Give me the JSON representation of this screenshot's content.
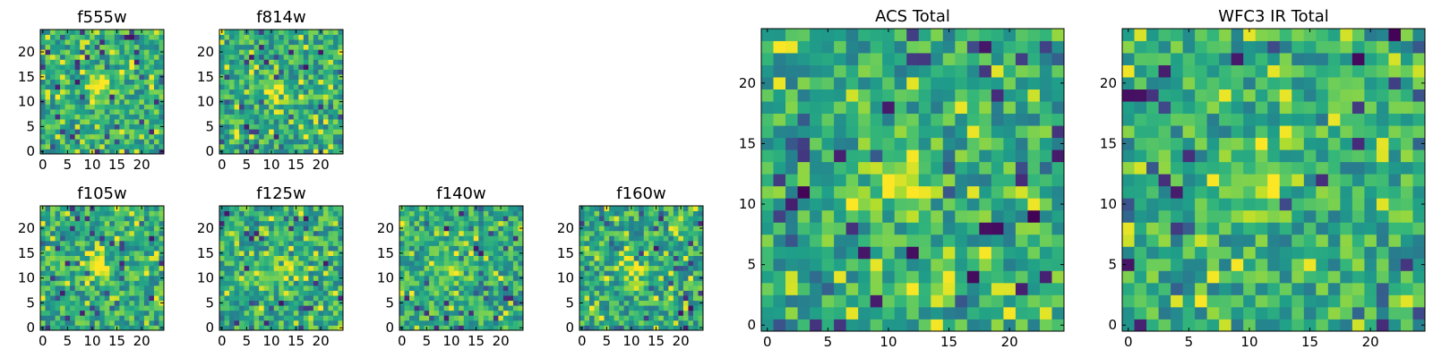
{
  "figure": {
    "colormap": "viridis",
    "background": "#ffffff",
    "frame_color": "#000000"
  },
  "chart_data": [
    {
      "type": "heatmap",
      "title": "f555w",
      "grid": [
        25,
        25
      ],
      "xticks": [
        "0",
        "5",
        "10",
        "15",
        "20"
      ],
      "yticks": [
        "0",
        "5",
        "10",
        "15",
        "20"
      ],
      "xlim": [
        0,
        25
      ],
      "ylim": [
        0,
        25
      ],
      "seed": 11,
      "blob": [
        11,
        13
      ],
      "spots": []
    },
    {
      "type": "heatmap",
      "title": "f814w",
      "grid": [
        25,
        25
      ],
      "xticks": [
        "0",
        "5",
        "10",
        "15",
        "20"
      ],
      "yticks": [
        "0",
        "5",
        "10",
        "15",
        "20"
      ],
      "xlim": [
        0,
        25
      ],
      "ylim": [
        0,
        25
      ],
      "seed": 23,
      "blob": [
        11,
        12
      ],
      "spots": []
    },
    {
      "type": "heatmap",
      "title": "f105w",
      "grid": [
        25,
        25
      ],
      "xticks": [
        "0",
        "5",
        "10",
        "15",
        "20"
      ],
      "yticks": [
        "0",
        "5",
        "10",
        "15",
        "20"
      ],
      "xlim": [
        0,
        25
      ],
      "ylim": [
        0,
        25
      ],
      "seed": 37,
      "blob": [
        11,
        12
      ],
      "spots": []
    },
    {
      "type": "heatmap",
      "title": "f125w",
      "grid": [
        25,
        25
      ],
      "xticks": [
        "0",
        "5",
        "10",
        "15",
        "20"
      ],
      "yticks": [
        "0",
        "5",
        "10",
        "15",
        "20"
      ],
      "xlim": [
        0,
        25
      ],
      "ylim": [
        0,
        25
      ],
      "seed": 41,
      "blob": [
        12,
        12
      ],
      "spots": []
    },
    {
      "type": "heatmap",
      "title": "f140w",
      "grid": [
        25,
        25
      ],
      "xticks": [
        "0",
        "5",
        "10",
        "15",
        "20"
      ],
      "yticks": [
        "0",
        "5",
        "10",
        "15",
        "20"
      ],
      "xlim": [
        0,
        25
      ],
      "ylim": [
        0,
        25
      ],
      "seed": 53,
      "blob": [
        11,
        12
      ],
      "spots": []
    },
    {
      "type": "heatmap",
      "title": "f160w",
      "grid": [
        25,
        25
      ],
      "xticks": [
        "0",
        "5",
        "10",
        "15",
        "20"
      ],
      "yticks": [
        "0",
        "5",
        "10",
        "15",
        "20"
      ],
      "xlim": [
        0,
        25
      ],
      "ylim": [
        0,
        25
      ],
      "seed": 67,
      "blob": [
        11,
        12
      ],
      "spots": []
    },
    {
      "type": "heatmap",
      "title": "ACS Total",
      "grid": [
        25,
        25
      ],
      "xticks": [
        "0",
        "5",
        "10",
        "15",
        "20"
      ],
      "yticks": [
        "0",
        "5",
        "10",
        "15",
        "20"
      ],
      "xlim": [
        0,
        25
      ],
      "ylim": [
        0,
        25
      ],
      "seed": 79,
      "blob": [
        11,
        12
      ],
      "spots": [
        [
          3,
          11
        ],
        [
          8,
          6
        ],
        [
          10,
          18
        ],
        [
          12,
          6
        ],
        [
          17,
          4
        ],
        [
          18,
          8
        ],
        [
          19,
          8
        ],
        [
          22,
          9
        ],
        [
          24,
          14
        ]
      ]
    },
    {
      "type": "heatmap",
      "title": "WFC3 IR Total",
      "grid": [
        25,
        25
      ],
      "xticks": [
        "0",
        "5",
        "10",
        "15",
        "20"
      ],
      "yticks": [
        "0",
        "5",
        "10",
        "15",
        "20"
      ],
      "xlim": [
        0,
        25
      ],
      "ylim": [
        0,
        25
      ],
      "seed": 97,
      "blob": [
        11,
        12
      ],
      "spots": [
        [
          0,
          19
        ],
        [
          1,
          19
        ],
        [
          0,
          5
        ],
        [
          4,
          11
        ],
        [
          19,
          22
        ],
        [
          22,
          24
        ]
      ]
    }
  ]
}
